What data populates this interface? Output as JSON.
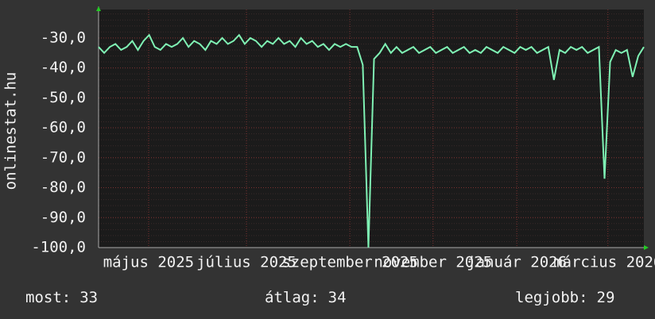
{
  "chart_data": {
    "type": "line",
    "y_label": "onlinestat.hu",
    "series": [
      {
        "color": "#7ff2b4",
        "values": [
          -33,
          -35,
          -33,
          -32,
          -34,
          -33,
          -31,
          -34,
          -31,
          -29,
          -33,
          -34,
          -32,
          -33,
          -32,
          -30,
          -33,
          -31,
          -32,
          -34,
          -31,
          -32,
          -30,
          -32,
          -31,
          -29,
          -32,
          -30,
          -31,
          -33,
          -31,
          -32,
          -30,
          -32,
          -31,
          -33,
          -30,
          -32,
          -31,
          -33,
          -32,
          -34,
          -32,
          -33,
          -32,
          -33,
          -33,
          -39,
          -100,
          -37,
          -35,
          -32,
          -35,
          -33,
          -35,
          -34,
          -33,
          -35,
          -34,
          -33,
          -35,
          -34,
          -33,
          -35,
          -34,
          -33,
          -35,
          -34,
          -35,
          -33,
          -34,
          -35,
          -33,
          -34,
          -35,
          -33,
          -34,
          -33,
          -35,
          -34,
          -33,
          -44,
          -34,
          -35,
          -33,
          -34,
          -33,
          -35,
          -34,
          -33,
          -77,
          -38,
          -34,
          -35,
          -34,
          -43,
          -36,
          -33
        ]
      }
    ],
    "xlim": [
      0,
      97
    ],
    "xticks": [
      {
        "value": 8.9,
        "label": "május 2025"
      },
      {
        "value": 26.3,
        "label": "július 2025"
      },
      {
        "value": 44.7,
        "label": "szeptember 2025"
      },
      {
        "value": 59.5,
        "label": "november 2025"
      },
      {
        "value": 74.4,
        "label": "január 2026"
      },
      {
        "value": 90.6,
        "label": "március 2026"
      }
    ],
    "ylim": [
      -100,
      -20.5
    ],
    "yticks": [
      {
        "value": -30,
        "label": "-30,0"
      },
      {
        "value": -40,
        "label": "-40,0"
      },
      {
        "value": -50,
        "label": "-50,0"
      },
      {
        "value": -60,
        "label": "-60,0"
      },
      {
        "value": -70,
        "label": "-70,0"
      },
      {
        "value": -80,
        "label": "-80,0"
      },
      {
        "value": -90,
        "label": "-90,0"
      },
      {
        "value": -100,
        "label": "-100,0"
      }
    ],
    "grid": true,
    "stats": [
      {
        "label": "most:",
        "value": 33
      },
      {
        "label": "átlag:",
        "value": 34
      },
      {
        "label": "legjobb:",
        "value": 29
      }
    ]
  }
}
